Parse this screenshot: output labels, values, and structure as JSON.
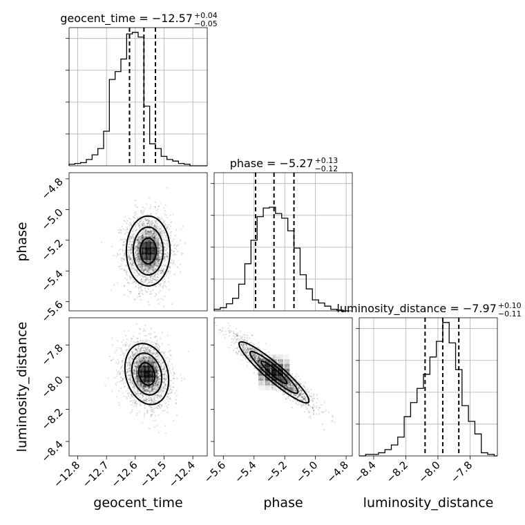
{
  "chart_data": {
    "type": "corner",
    "parameters": [
      "geocent_time",
      "phase",
      "luminosity_distance"
    ],
    "axis_labels": {
      "geocent_time": "geocent_time",
      "phase": "phase",
      "luminosity_distance": "luminosity_distance"
    },
    "ranges": {
      "geocent_time": [
        -12.83,
        -12.35
      ],
      "phase": [
        -5.66,
        -4.76
      ],
      "luminosity_distance": [
        -8.49,
        -7.63
      ]
    },
    "ticks": {
      "geocent_time": [
        -12.8,
        -12.7,
        -12.6,
        -12.5,
        -12.4
      ],
      "phase": [
        -5.6,
        -5.4,
        -5.2,
        -5.0,
        -4.8
      ],
      "luminosity_distance": [
        -8.4,
        -8.2,
        -8.0,
        -7.8
      ]
    },
    "tick_labels": {
      "geocent_time": [
        "−12.8",
        "−12.7",
        "−12.6",
        "−12.5",
        "−12.4"
      ],
      "phase": [
        "−5.6",
        "−5.4",
        "−5.2",
        "−5.0",
        "−4.8"
      ],
      "luminosity_distance": [
        "−8.4",
        "−8.2",
        "−8.0",
        "−7.8"
      ]
    },
    "titles": [
      {
        "name": "geocent_time",
        "prefix": "geocent_time = −12.57",
        "plus": "+0.04",
        "minus": "−0.05"
      },
      {
        "name": "phase",
        "prefix": "phase = −5.27",
        "plus": "+0.13",
        "minus": "−0.12"
      },
      {
        "name": "luminosity_distance",
        "prefix": "luminosity_distance = −7.97",
        "plus": "+0.10",
        "minus": "−0.11"
      }
    ],
    "quantiles": {
      "geocent_time": [
        -12.62,
        -12.57,
        -12.53
      ],
      "phase": [
        -5.39,
        -5.27,
        -5.14
      ],
      "luminosity_distance": [
        -8.08,
        -7.97,
        -7.87
      ]
    },
    "histograms": {
      "geocent_time": {
        "edges": [
          -12.83,
          -12.81,
          -12.79,
          -12.77,
          -12.75,
          -12.73,
          -12.71,
          -12.69,
          -12.67,
          -12.65,
          -12.63,
          -12.61,
          -12.59,
          -12.57,
          -12.55,
          -12.53,
          -12.51,
          -12.49,
          -12.47,
          -12.45,
          -12.43,
          -12.41,
          -12.39,
          -12.37,
          -12.35
        ],
        "counts": [
          0.01,
          0.015,
          0.02,
          0.04,
          0.07,
          0.11,
          0.22,
          0.55,
          0.6,
          0.68,
          0.84,
          0.85,
          0.82,
          0.38,
          0.14,
          0.11,
          0.06,
          0.04,
          0.03,
          0.015,
          0.01,
          0,
          0,
          0
        ]
      },
      "phase": {
        "edges": [
          -5.66,
          -5.62,
          -5.58,
          -5.54,
          -5.5,
          -5.46,
          -5.42,
          -5.38,
          -5.34,
          -5.3,
          -5.26,
          -5.22,
          -5.18,
          -5.14,
          -5.1,
          -5.06,
          -5.02,
          -4.98,
          -4.94,
          -4.9,
          -4.86,
          -4.82,
          -4.78
        ],
        "counts": [
          0.01,
          0.02,
          0.045,
          0.08,
          0.17,
          0.3,
          0.45,
          0.6,
          0.655,
          0.66,
          0.62,
          0.59,
          0.51,
          0.4,
          0.23,
          0.14,
          0.07,
          0.05,
          0.03,
          0.01,
          0.005,
          0.0
        ]
      },
      "luminosity_distance": {
        "edges": [
          -8.49,
          -8.45,
          -8.41,
          -8.37,
          -8.33,
          -8.29,
          -8.25,
          -8.21,
          -8.17,
          -8.13,
          -8.09,
          -8.05,
          -8.01,
          -7.97,
          -7.93,
          -7.89,
          -7.85,
          -7.81,
          -7.77,
          -7.73,
          -7.69,
          -7.65,
          -7.63
        ],
        "counts": [
          0.0,
          0.01,
          0.01,
          0.02,
          0.04,
          0.07,
          0.12,
          0.25,
          0.34,
          0.43,
          0.52,
          0.63,
          0.73,
          0.85,
          0.72,
          0.55,
          0.32,
          0.22,
          0.14,
          0.02,
          0.01,
          0.0
        ]
      }
    },
    "pairs": [
      {
        "x": "geocent_time",
        "y": "phase",
        "center": [
          -12.555,
          -5.27
        ],
        "sigma": [
          0.04,
          0.12
        ],
        "rho": 0.0
      },
      {
        "x": "geocent_time",
        "y": "luminosity_distance",
        "center": [
          -12.56,
          -7.98
        ],
        "sigma": [
          0.04,
          0.1
        ],
        "rho": -0.2
      },
      {
        "x": "phase",
        "y": "luminosity_distance",
        "center": [
          -5.27,
          -7.97
        ],
        "sigma": [
          0.12,
          0.1
        ],
        "rho": -0.93
      }
    ],
    "grid": true
  }
}
